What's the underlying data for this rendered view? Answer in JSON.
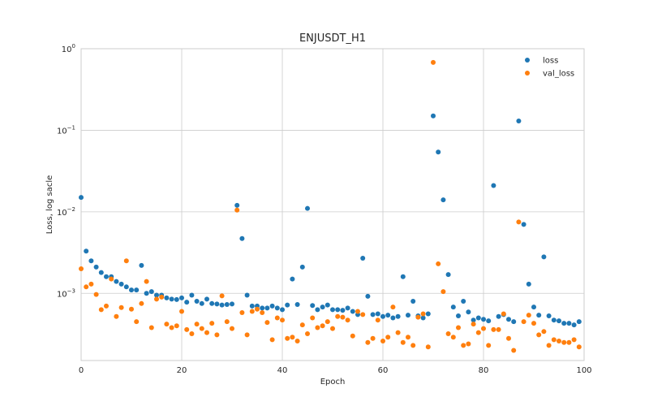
{
  "chart_data": {
    "type": "scatter",
    "title": "ENJUSDT_H1",
    "xlabel": "Epoch",
    "ylabel": "Loss, log sacle",
    "yscale": "log",
    "xlim": [
      0,
      100
    ],
    "ylim": [
      0.00015,
      1
    ],
    "xticks": [
      0,
      20,
      40,
      60,
      80,
      100
    ],
    "yticks": [
      {
        "value": 0.001,
        "base": "10",
        "exp": "−3"
      },
      {
        "value": 0.01,
        "base": "10",
        "exp": "−2"
      },
      {
        "value": 0.1,
        "base": "10",
        "exp": "−1"
      },
      {
        "value": 1,
        "base": "10",
        "exp": "0"
      }
    ],
    "grid": true,
    "legend_position": "top-right",
    "series": [
      {
        "name": "loss",
        "color": "#1f77b4",
        "x": [
          0,
          1,
          2,
          3,
          4,
          5,
          6,
          7,
          8,
          9,
          10,
          11,
          12,
          13,
          14,
          15,
          16,
          17,
          18,
          19,
          20,
          21,
          22,
          23,
          24,
          25,
          26,
          27,
          28,
          29,
          30,
          31,
          32,
          33,
          34,
          35,
          36,
          37,
          38,
          39,
          40,
          41,
          42,
          43,
          44,
          45,
          46,
          47,
          48,
          49,
          50,
          51,
          52,
          53,
          54,
          55,
          56,
          57,
          58,
          59,
          60,
          61,
          62,
          63,
          64,
          65,
          66,
          67,
          68,
          69,
          70,
          71,
          72,
          73,
          74,
          75,
          76,
          77,
          78,
          79,
          80,
          81,
          82,
          83,
          84,
          85,
          86,
          87,
          88,
          89,
          90,
          91,
          92,
          93,
          94,
          95,
          96,
          97,
          98,
          99
        ],
        "y": [
          0.015,
          0.0033,
          0.0025,
          0.0021,
          0.0018,
          0.0016,
          0.0016,
          0.0014,
          0.0013,
          0.0012,
          0.0011,
          0.0011,
          0.0022,
          0.001,
          0.00105,
          0.00095,
          0.00095,
          0.00088,
          0.00085,
          0.00084,
          0.00088,
          0.00078,
          0.00095,
          0.0008,
          0.00075,
          0.00085,
          0.00075,
          0.00074,
          0.00072,
          0.00073,
          0.00074,
          0.012,
          0.0047,
          0.00095,
          0.0007,
          0.0007,
          0.00066,
          0.00066,
          0.0007,
          0.00066,
          0.00063,
          0.00072,
          0.0015,
          0.00073,
          0.0021,
          0.011,
          0.00071,
          0.00063,
          0.00068,
          0.00072,
          0.00063,
          0.00063,
          0.00062,
          0.00066,
          0.0006,
          0.00055,
          0.0027,
          0.00092,
          0.00055,
          0.00056,
          0.00052,
          0.00054,
          0.0005,
          0.00052,
          0.0016,
          0.00054,
          0.0008,
          0.00053,
          0.0005,
          0.00056,
          0.15,
          0.054,
          0.014,
          0.0017,
          0.00068,
          0.00053,
          0.0008,
          0.00059,
          0.00047,
          0.0005,
          0.00048,
          0.00046,
          0.021,
          0.00052,
          0.00055,
          0.00048,
          0.00045,
          0.13,
          0.007,
          0.0013,
          0.00068,
          0.00054,
          0.0028,
          0.00053,
          0.00047,
          0.00046,
          0.00043,
          0.00043,
          0.00041,
          0.00045
        ]
      },
      {
        "name": "val_loss",
        "color": "#ff7f0e",
        "x": [
          0,
          1,
          2,
          3,
          4,
          5,
          6,
          7,
          8,
          9,
          10,
          11,
          12,
          13,
          14,
          15,
          16,
          17,
          18,
          19,
          20,
          21,
          22,
          23,
          24,
          25,
          26,
          27,
          28,
          29,
          30,
          31,
          32,
          33,
          34,
          35,
          36,
          37,
          38,
          39,
          40,
          41,
          42,
          43,
          44,
          45,
          46,
          47,
          48,
          49,
          50,
          51,
          52,
          53,
          54,
          55,
          56,
          57,
          58,
          59,
          60,
          61,
          62,
          63,
          64,
          65,
          66,
          67,
          68,
          69,
          70,
          71,
          72,
          73,
          74,
          75,
          76,
          77,
          78,
          79,
          80,
          81,
          82,
          83,
          84,
          85,
          86,
          87,
          88,
          89,
          90,
          91,
          92,
          93,
          94,
          95,
          96,
          97,
          98,
          99
        ],
        "y": [
          0.002,
          0.0012,
          0.0013,
          0.00097,
          0.00063,
          0.0007,
          0.0015,
          0.00052,
          0.00067,
          0.0025,
          0.00064,
          0.00045,
          0.00075,
          0.0014,
          0.00038,
          0.00085,
          0.0009,
          0.00042,
          0.00038,
          0.0004,
          0.0006,
          0.00036,
          0.00032,
          0.00042,
          0.00037,
          0.00033,
          0.00043,
          0.00031,
          0.00093,
          0.00045,
          0.00037,
          0.0105,
          0.00058,
          0.00031,
          0.0006,
          0.00064,
          0.00058,
          0.00044,
          0.00027,
          0.0005,
          0.00047,
          0.00028,
          0.00029,
          0.00026,
          0.00041,
          0.00032,
          0.0005,
          0.00038,
          0.0004,
          0.00045,
          0.00037,
          0.00052,
          0.00051,
          0.00047,
          0.0003,
          0.0006,
          0.00055,
          0.00025,
          0.00028,
          0.00047,
          0.00026,
          0.00029,
          0.00068,
          0.00033,
          0.00025,
          0.00029,
          0.00023,
          0.00051,
          0.00056,
          0.00022,
          0.68,
          0.0023,
          0.00105,
          0.00032,
          0.00029,
          0.00038,
          0.00023,
          0.00024,
          0.00042,
          0.00033,
          0.00037,
          0.00023,
          0.00036,
          0.00036,
          0.00056,
          0.00028,
          0.0002,
          0.0075,
          0.00045,
          0.00054,
          0.00043,
          0.00031,
          0.00034,
          0.00023,
          0.00027,
          0.00026,
          0.00025,
          0.00025,
          0.00027,
          0.00022
        ]
      }
    ]
  }
}
